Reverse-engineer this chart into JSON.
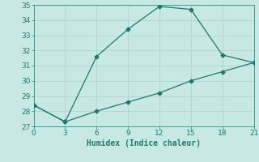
{
  "line1_x": [
    0,
    3,
    6,
    9,
    12,
    15,
    18,
    21
  ],
  "line1_y": [
    28.4,
    27.3,
    31.6,
    33.4,
    34.9,
    34.7,
    31.7,
    31.2
  ],
  "line2_x": [
    0,
    3,
    6,
    9,
    12,
    15,
    18,
    21
  ],
  "line2_y": [
    28.4,
    27.3,
    28.0,
    28.6,
    29.2,
    30.0,
    30.6,
    31.2
  ],
  "line_color": "#1a7a6e",
  "background_color": "#c8e8e4",
  "grid_color": "#b0d4d0",
  "xlabel": "Humidex (Indice chaleur)",
  "xlim": [
    0,
    21
  ],
  "ylim": [
    27,
    35
  ],
  "xticks": [
    0,
    3,
    6,
    9,
    12,
    15,
    18,
    21
  ],
  "yticks": [
    27,
    28,
    29,
    30,
    31,
    32,
    33,
    34,
    35
  ],
  "xlabel_fontsize": 7,
  "tick_fontsize": 6.5,
  "marker": "D",
  "markersize": 2.5,
  "linewidth": 0.9
}
